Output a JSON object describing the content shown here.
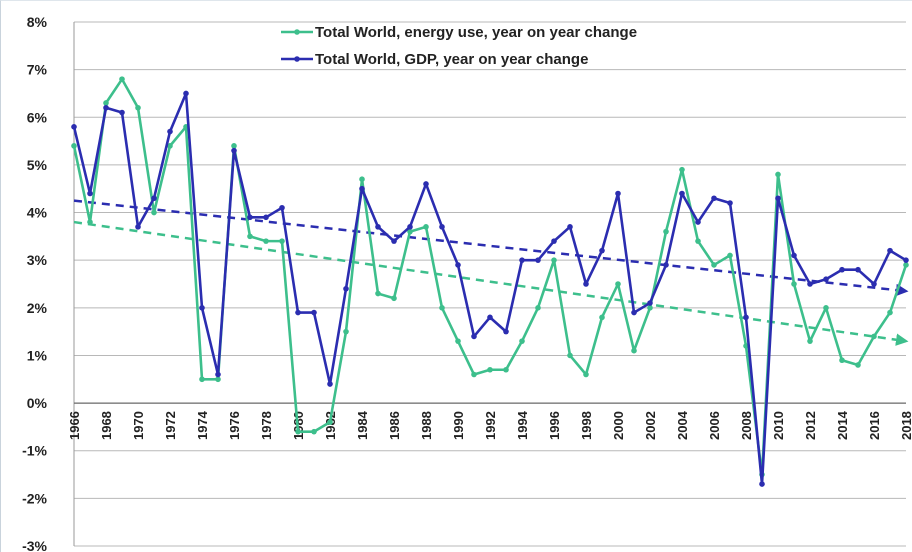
{
  "chart_data": {
    "type": "line",
    "title": "",
    "xlabel": "",
    "ylabel": "",
    "ylim": [
      -3,
      8
    ],
    "y_ticks": [
      "8%",
      "7%",
      "6%",
      "5%",
      "4%",
      "3%",
      "2%",
      "1%",
      "0%",
      "-1%",
      "-2%",
      "-3%"
    ],
    "y_tick_values": [
      8,
      7,
      6,
      5,
      4,
      3,
      2,
      1,
      0,
      -1,
      -2,
      -3
    ],
    "x_ticks": [
      "1966",
      "1968",
      "1970",
      "1972",
      "1974",
      "1976",
      "1978",
      "1980",
      "1982",
      "1984",
      "1986",
      "1988",
      "1990",
      "1992",
      "1994",
      "1996",
      "1998",
      "2000",
      "2002",
      "2004",
      "2006",
      "2008",
      "2010",
      "2012",
      "2014",
      "2016",
      "2018"
    ],
    "grid": "horizontal",
    "legend_position": "top-center",
    "x": [
      1966,
      1967,
      1968,
      1969,
      1970,
      1971,
      1972,
      1973,
      1974,
      1975,
      1976,
      1977,
      1978,
      1979,
      1980,
      1981,
      1982,
      1983,
      1984,
      1985,
      1986,
      1987,
      1988,
      1989,
      1990,
      1991,
      1992,
      1993,
      1994,
      1995,
      1996,
      1997,
      1998,
      1999,
      2000,
      2001,
      2002,
      2003,
      2004,
      2005,
      2006,
      2007,
      2008,
      2009,
      2010,
      2011,
      2012,
      2013,
      2014,
      2015,
      2016,
      2017,
      2018
    ],
    "series": [
      {
        "name": "Total World, energy use, year on year change",
        "color": "#3dbf8c",
        "values": [
          5.4,
          3.8,
          6.3,
          6.8,
          6.2,
          4.0,
          5.4,
          5.8,
          0.5,
          0.5,
          5.4,
          3.5,
          3.4,
          3.4,
          -0.6,
          -0.6,
          -0.4,
          1.5,
          4.7,
          2.3,
          2.2,
          3.6,
          3.7,
          2.0,
          1.3,
          0.6,
          0.7,
          0.7,
          1.3,
          2.0,
          3.0,
          1.0,
          0.6,
          1.8,
          2.5,
          1.1,
          2.0,
          3.6,
          4.9,
          3.4,
          2.9,
          3.1,
          1.2,
          -1.5,
          4.8,
          2.5,
          1.3,
          2.0,
          0.9,
          0.8,
          1.4,
          1.9,
          2.9
        ]
      },
      {
        "name": "Total World, GDP, year on year change",
        "color": "#2b2db0",
        "values": [
          5.8,
          4.4,
          6.2,
          6.1,
          3.7,
          4.3,
          5.7,
          6.5,
          2.0,
          0.6,
          5.3,
          3.9,
          3.9,
          4.1,
          1.9,
          1.9,
          0.4,
          2.4,
          4.5,
          3.7,
          3.4,
          3.7,
          4.6,
          3.7,
          2.9,
          1.4,
          1.8,
          1.5,
          3.0,
          3.0,
          3.4,
          3.7,
          2.5,
          3.2,
          4.4,
          1.9,
          2.1,
          2.9,
          4.4,
          3.8,
          4.3,
          4.2,
          1.8,
          -1.7,
          4.3,
          3.1,
          2.5,
          2.6,
          2.8,
          2.8,
          2.5,
          3.2,
          3.0
        ]
      }
    ],
    "trendlines": [
      {
        "series": "Total World, energy use, year on year change",
        "color": "#3dbf8c",
        "from": [
          1966,
          3.8
        ],
        "to": [
          2018,
          1.3
        ],
        "style": "dashed-arrow"
      },
      {
        "series": "Total World, GDP, year on year change",
        "color": "#2b2db0",
        "from": [
          1966,
          4.25
        ],
        "to": [
          2018,
          2.35
        ],
        "style": "dashed-arrow"
      }
    ]
  }
}
